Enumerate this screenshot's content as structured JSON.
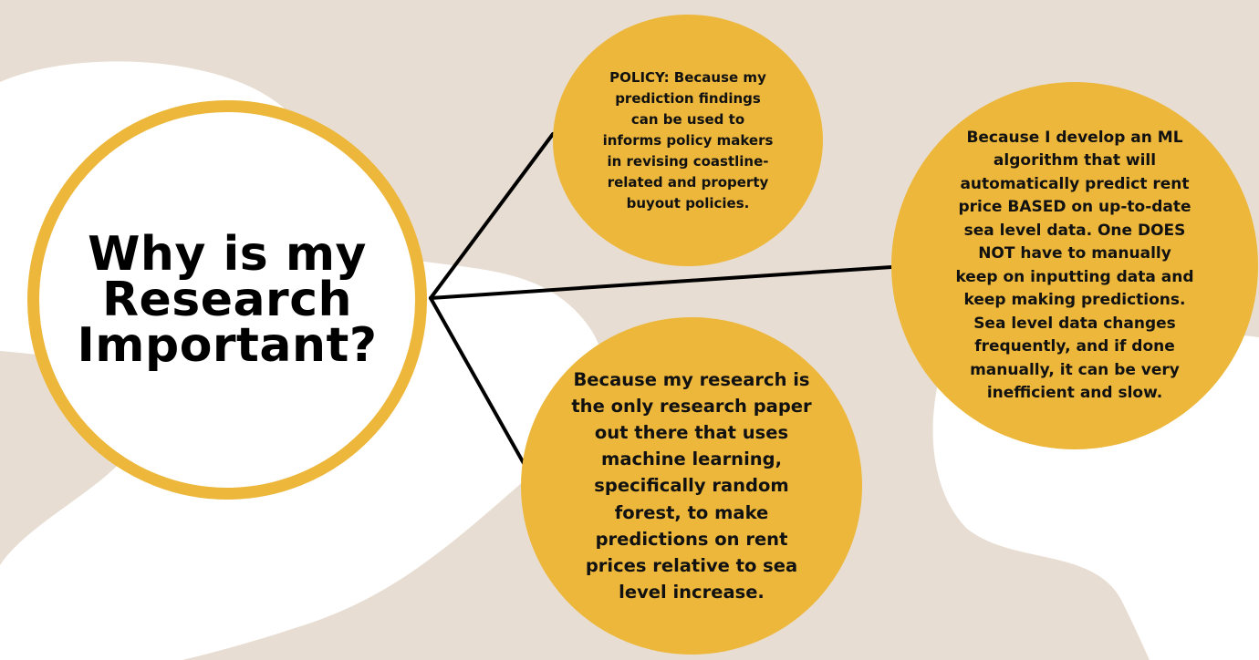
{
  "center": {
    "title": "Why is my Research Important?"
  },
  "branches": {
    "policy": "POLICY: Because my prediction findings can be used to informs policy makers  in revising coastline-related and property buyout policies.",
    "ml": "Because I develop an ML algorithm that will automatically predict rent price BASED on up-to-date sea level data. One DOES NOT have to manually keep on inputting data and keep making predictions. Sea level data changes frequently, and if done manually, it can be very inefficient and slow.",
    "research": "Because my research is the only research paper out there that uses machine learning, specifically random forest, to make predictions on rent prices relative to sea level increase."
  },
  "colors": {
    "background": "#e8ddd2",
    "blob": "#ffffff",
    "accent": "#ecb73a",
    "line": "#000000"
  }
}
